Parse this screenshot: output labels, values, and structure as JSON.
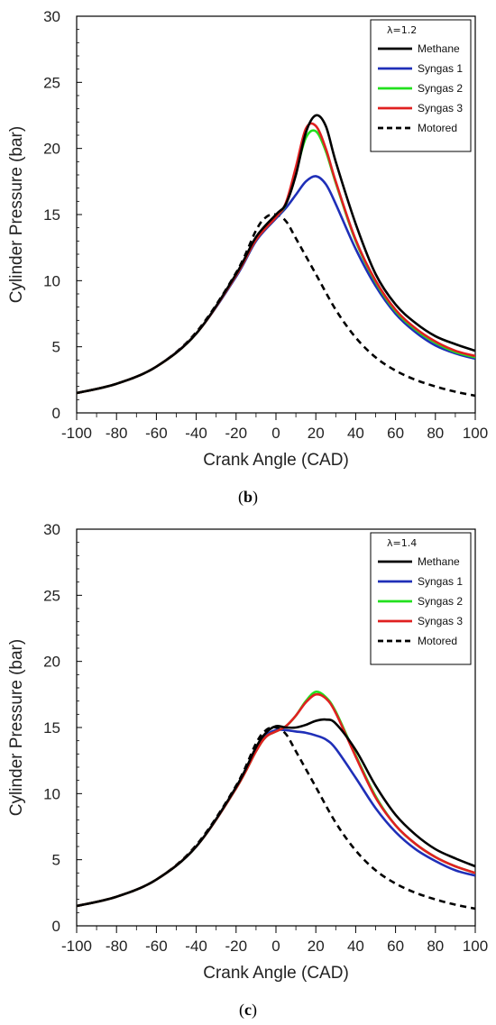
{
  "chart_data": [
    {
      "type": "line",
      "caption_letter": "b",
      "xlabel": "Crank Angle (CAD)",
      "ylabel": "Cylinder Pressure (bar)",
      "xlim": [
        -100,
        100
      ],
      "ylim": [
        0,
        30
      ],
      "xticks": [
        -100,
        -80,
        -60,
        -40,
        -20,
        0,
        20,
        40,
        60,
        80,
        100
      ],
      "yticks": [
        0,
        5,
        10,
        15,
        20,
        25,
        30
      ],
      "legend_title": "λ=1.2",
      "legend_position": "top-right",
      "series": [
        {
          "name": "Methane",
          "color": "#000000",
          "dash": "solid",
          "x": [
            -100,
            -80,
            -60,
            -40,
            -20,
            -10,
            0,
            5,
            10,
            15,
            20,
            25,
            30,
            40,
            50,
            60,
            70,
            80,
            90,
            100
          ],
          "y": [
            1.5,
            2.2,
            3.5,
            6.0,
            10.5,
            13.3,
            15.0,
            15.8,
            18.0,
            21.2,
            22.5,
            21.7,
            19.0,
            14.3,
            10.5,
            8.2,
            6.8,
            5.8,
            5.2,
            4.7
          ]
        },
        {
          "name": "Syngas 1",
          "color": "#1f2fb8",
          "dash": "solid",
          "x": [
            -100,
            -80,
            -60,
            -40,
            -20,
            -10,
            0,
            5,
            10,
            15,
            20,
            25,
            30,
            40,
            50,
            60,
            70,
            80,
            90,
            100
          ],
          "y": [
            1.5,
            2.2,
            3.5,
            6.0,
            10.3,
            13.0,
            14.7,
            15.5,
            16.5,
            17.5,
            17.9,
            17.3,
            15.8,
            12.4,
            9.6,
            7.5,
            6.1,
            5.1,
            4.5,
            4.1
          ]
        },
        {
          "name": "Syngas 2",
          "color": "#22e01e",
          "dash": "solid",
          "x": [
            -100,
            -80,
            -60,
            -40,
            -20,
            -10,
            0,
            5,
            10,
            15,
            20,
            25,
            30,
            40,
            50,
            60,
            70,
            80,
            90,
            100
          ],
          "y": [
            1.5,
            2.2,
            3.5,
            6.0,
            10.4,
            13.1,
            14.8,
            15.8,
            18.2,
            20.8,
            21.3,
            19.8,
            17.4,
            13.0,
            9.9,
            7.7,
            6.3,
            5.3,
            4.6,
            4.2
          ]
        },
        {
          "name": "Syngas 3",
          "color": "#e02020",
          "dash": "solid",
          "x": [
            -100,
            -80,
            -60,
            -40,
            -20,
            -10,
            0,
            5,
            10,
            15,
            20,
            25,
            30,
            40,
            50,
            60,
            70,
            80,
            90,
            100
          ],
          "y": [
            1.5,
            2.2,
            3.5,
            6.0,
            10.4,
            13.1,
            14.8,
            15.9,
            18.6,
            21.5,
            21.7,
            20.0,
            17.5,
            13.1,
            10.0,
            7.8,
            6.4,
            5.4,
            4.7,
            4.3
          ]
        },
        {
          "name": "Motored",
          "color": "#000000",
          "dash": "dashed",
          "x": [
            -100,
            -80,
            -60,
            -40,
            -20,
            -10,
            -5,
            0,
            5,
            10,
            20,
            30,
            40,
            50,
            60,
            70,
            80,
            90,
            100
          ],
          "y": [
            1.5,
            2.2,
            3.5,
            6.1,
            10.6,
            13.8,
            14.8,
            15.0,
            14.5,
            13.2,
            10.5,
            7.8,
            5.7,
            4.2,
            3.2,
            2.5,
            2.0,
            1.6,
            1.3
          ]
        }
      ]
    },
    {
      "type": "line",
      "caption_letter": "c",
      "xlabel": "Crank Angle (CAD)",
      "ylabel": "Cylinder Pressure (bar)",
      "xlim": [
        -100,
        100
      ],
      "ylim": [
        0,
        30
      ],
      "xticks": [
        -100,
        -80,
        -60,
        -40,
        -20,
        0,
        20,
        40,
        60,
        80,
        100
      ],
      "yticks": [
        0,
        5,
        10,
        15,
        20,
        25,
        30
      ],
      "legend_title": "λ=1.4",
      "legend_position": "top-right",
      "series": [
        {
          "name": "Methane",
          "color": "#000000",
          "dash": "solid",
          "x": [
            -100,
            -80,
            -60,
            -40,
            -20,
            -10,
            -5,
            0,
            5,
            10,
            15,
            20,
            25,
            30,
            40,
            50,
            60,
            70,
            80,
            90,
            100
          ],
          "y": [
            1.5,
            2.2,
            3.5,
            6.0,
            10.5,
            13.5,
            14.6,
            15.1,
            15.0,
            15.0,
            15.2,
            15.5,
            15.6,
            15.3,
            13.3,
            10.6,
            8.4,
            6.9,
            5.8,
            5.1,
            4.5
          ]
        },
        {
          "name": "Syngas 1",
          "color": "#1f2fb8",
          "dash": "solid",
          "x": [
            -100,
            -80,
            -60,
            -40,
            -20,
            -10,
            -5,
            0,
            5,
            10,
            15,
            20,
            25,
            30,
            40,
            50,
            60,
            70,
            80,
            90,
            100
          ],
          "y": [
            1.5,
            2.2,
            3.5,
            6.0,
            10.4,
            13.3,
            14.4,
            14.8,
            14.8,
            14.7,
            14.6,
            14.4,
            14.1,
            13.4,
            11.2,
            8.9,
            7.1,
            5.8,
            4.9,
            4.2,
            3.8
          ]
        },
        {
          "name": "Syngas 2",
          "color": "#22e01e",
          "dash": "solid",
          "x": [
            -100,
            -80,
            -60,
            -40,
            -20,
            -10,
            -5,
            0,
            5,
            10,
            15,
            20,
            25,
            30,
            40,
            50,
            60,
            70,
            80,
            90,
            100
          ],
          "y": [
            1.5,
            2.2,
            3.5,
            6.0,
            10.4,
            13.2,
            14.3,
            14.7,
            15.1,
            15.9,
            17.0,
            17.7,
            17.3,
            16.2,
            12.9,
            9.8,
            7.6,
            6.2,
            5.2,
            4.5,
            4.0
          ]
        },
        {
          "name": "Syngas 3",
          "color": "#e02020",
          "dash": "solid",
          "x": [
            -100,
            -80,
            -60,
            -40,
            -20,
            -10,
            -5,
            0,
            5,
            10,
            15,
            20,
            25,
            30,
            40,
            50,
            60,
            70,
            80,
            90,
            100
          ],
          "y": [
            1.5,
            2.2,
            3.5,
            6.0,
            10.4,
            13.2,
            14.3,
            14.7,
            15.1,
            15.9,
            16.9,
            17.5,
            17.2,
            16.1,
            12.8,
            9.7,
            7.6,
            6.2,
            5.2,
            4.5,
            4.0
          ]
        },
        {
          "name": "Motored",
          "color": "#000000",
          "dash": "dashed",
          "x": [
            -100,
            -80,
            -60,
            -40,
            -20,
            -10,
            -5,
            0,
            5,
            10,
            20,
            30,
            40,
            50,
            60,
            70,
            80,
            90,
            100
          ],
          "y": [
            1.5,
            2.2,
            3.5,
            6.1,
            10.6,
            13.8,
            14.8,
            15.0,
            14.5,
            13.2,
            10.5,
            7.8,
            5.7,
            4.2,
            3.2,
            2.5,
            2.0,
            1.6,
            1.3
          ]
        }
      ]
    }
  ]
}
